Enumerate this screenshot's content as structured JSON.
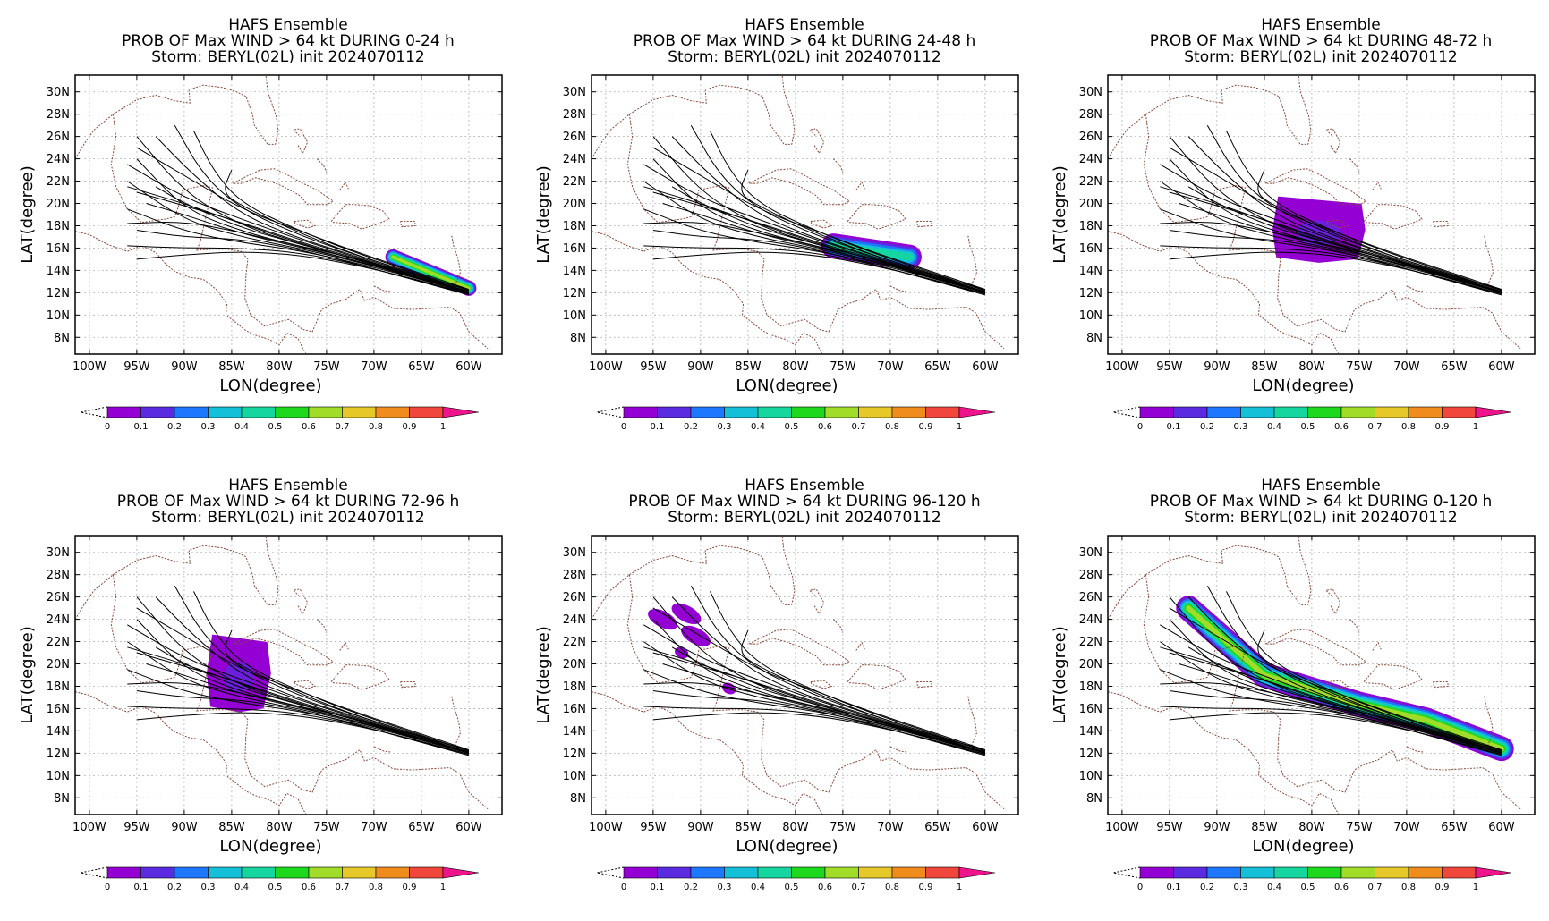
{
  "figure": {
    "model_title": "HAFS Ensemble",
    "storm_line": "Storm: BERYL(02L) init 2024070112",
    "xlabel": "LON(degree)",
    "ylabel": "LAT(degree)",
    "lon_ticks": [
      "100W",
      "95W",
      "90W",
      "85W",
      "80W",
      "75W",
      "70W",
      "65W",
      "60W"
    ],
    "lat_ticks": [
      "30N",
      "28N",
      "26N",
      "24N",
      "22N",
      "20N",
      "18N",
      "16N",
      "14N",
      "12N",
      "10N",
      "8N"
    ],
    "colorbar": {
      "labels": [
        "0",
        "0.1",
        "0.2",
        "0.3",
        "0.4",
        "0.5",
        "0.6",
        "0.7",
        "0.8",
        "0.9",
        "1"
      ],
      "colors": [
        "#9400d3",
        "#5a2be0",
        "#1e78ff",
        "#14c0d8",
        "#16d6a0",
        "#1ed81e",
        "#a0dc28",
        "#e6c828",
        "#f08c1e",
        "#f0463c",
        "#f0148c"
      ]
    },
    "colors": {
      "track": "#000000",
      "coast": "#8b4a3a",
      "grid": "#b4b4b4"
    }
  },
  "panels": [
    {
      "id": "p1",
      "prob_line": "PROB OF Max WIND > 64 kt DURING  0-24 h"
    },
    {
      "id": "p2",
      "prob_line": "PROB OF Max WIND > 64 kt DURING 24-48 h"
    },
    {
      "id": "p3",
      "prob_line": "PROB OF Max WIND > 64 kt DURING 48-72 h"
    },
    {
      "id": "p4",
      "prob_line": "PROB OF Max WIND > 64 kt DURING 72-96 h"
    },
    {
      "id": "p5",
      "prob_line": "PROB OF Max WIND > 64 kt DURING 96-120 h"
    },
    {
      "id": "p6",
      "prob_line": "PROB OF Max WIND > 64 kt DURING 0-120 h"
    }
  ],
  "chart_data": {
    "type": "heatmap",
    "map_extent": {
      "lon": [
        -101.5,
        -56.5
      ],
      "lat": [
        6.5,
        31.5
      ]
    },
    "ensemble_tracks": [
      [
        [
          -60,
          12
        ],
        [
          -66,
          13.6
        ],
        [
          -72,
          15
        ],
        [
          -78,
          16.4
        ],
        [
          -84,
          18
        ],
        [
          -90,
          21
        ],
        [
          -95,
          26
        ]
      ],
      [
        [
          -60,
          12
        ],
        [
          -66,
          13.8
        ],
        [
          -72,
          15.4
        ],
        [
          -78,
          17.2
        ],
        [
          -84,
          19.5
        ],
        [
          -88,
          22.5
        ],
        [
          -91,
          27
        ]
      ],
      [
        [
          -60,
          12.3
        ],
        [
          -66,
          13.7
        ],
        [
          -72,
          15.1
        ],
        [
          -78,
          16.2
        ],
        [
          -84,
          17.5
        ],
        [
          -90,
          19.5
        ],
        [
          -95,
          24
        ]
      ],
      [
        [
          -60,
          12.1
        ],
        [
          -66,
          13.5
        ],
        [
          -72,
          14.8
        ],
        [
          -78,
          16
        ],
        [
          -84,
          17
        ],
        [
          -90,
          18.5
        ],
        [
          -96,
          22
        ]
      ],
      [
        [
          -60,
          12
        ],
        [
          -66,
          13.4
        ],
        [
          -72,
          14.7
        ],
        [
          -78,
          15.8
        ],
        [
          -84,
          16.5
        ],
        [
          -90,
          17.5
        ],
        [
          -96,
          19.5
        ]
      ],
      [
        [
          -60,
          11.8
        ],
        [
          -66,
          13.2
        ],
        [
          -72,
          14.6
        ],
        [
          -78,
          15.6
        ],
        [
          -84,
          16
        ],
        [
          -90,
          16
        ],
        [
          -96,
          16.2
        ]
      ],
      [
        [
          -60,
          12.2
        ],
        [
          -66,
          13.9
        ],
        [
          -72,
          15.6
        ],
        [
          -78,
          17.6
        ],
        [
          -84,
          20
        ],
        [
          -87,
          23
        ],
        [
          -89,
          26.5
        ]
      ],
      [
        [
          -60,
          12
        ],
        [
          -66,
          13.6
        ],
        [
          -72,
          15.2
        ],
        [
          -78,
          16.8
        ],
        [
          -84,
          18.6
        ],
        [
          -90,
          20.5
        ],
        [
          -96,
          23.5
        ]
      ],
      [
        [
          -60,
          11.9
        ],
        [
          -66,
          13.3
        ],
        [
          -72,
          14.5
        ],
        [
          -78,
          15.4
        ],
        [
          -84,
          15.7
        ],
        [
          -90,
          15.4
        ],
        [
          -95,
          15
        ]
      ],
      [
        [
          -60,
          12.1
        ],
        [
          -66,
          13.7
        ],
        [
          -72,
          15.3
        ],
        [
          -78,
          16.9
        ],
        [
          -84,
          19
        ],
        [
          -89,
          22.5
        ],
        [
          -93,
          26
        ]
      ],
      [
        [
          -60,
          12
        ],
        [
          -66,
          13.5
        ],
        [
          -72,
          15
        ],
        [
          -78,
          16.5
        ],
        [
          -84,
          18.2
        ],
        [
          -90,
          20
        ],
        [
          -96,
          21.5
        ]
      ],
      [
        [
          -60,
          12.2
        ],
        [
          -66,
          13.8
        ],
        [
          -72,
          15.4
        ],
        [
          -78,
          17.4
        ],
        [
          -84,
          19.8
        ],
        [
          -86,
          21
        ],
        [
          -85,
          23
        ]
      ],
      [
        [
          -60,
          12
        ],
        [
          -66,
          13.4
        ],
        [
          -72,
          14.9
        ],
        [
          -78,
          16.2
        ],
        [
          -84,
          17.4
        ],
        [
          -90,
          18.4
        ],
        [
          -96,
          18.2
        ]
      ],
      [
        [
          -60,
          12.1
        ],
        [
          -66,
          13.6
        ],
        [
          -72,
          15.1
        ],
        [
          -78,
          16.6
        ],
        [
          -84,
          18.3
        ],
        [
          -90,
          19.8
        ],
        [
          -95,
          21
        ]
      ],
      [
        [
          -60,
          11.9
        ],
        [
          -66,
          13.2
        ],
        [
          -72,
          14.6
        ],
        [
          -78,
          15.9
        ],
        [
          -84,
          16.8
        ],
        [
          -90,
          17
        ],
        [
          -95,
          17.6
        ]
      ],
      [
        [
          -60,
          12.3
        ],
        [
          -66,
          14
        ],
        [
          -72,
          15.7
        ],
        [
          -78,
          17.6
        ],
        [
          -84,
          19.5
        ],
        [
          -90,
          22.5
        ],
        [
          -95,
          25
        ]
      ],
      [
        [
          -60,
          12
        ],
        [
          -66,
          13.5
        ],
        [
          -72,
          14.9
        ],
        [
          -78,
          16.1
        ],
        [
          -84,
          17.3
        ],
        [
          -90,
          19
        ],
        [
          -94,
          20
        ]
      ],
      [
        [
          -60,
          12.1
        ],
        [
          -66,
          13.6
        ],
        [
          -72,
          15
        ],
        [
          -78,
          16.4
        ],
        [
          -84,
          17.8
        ],
        [
          -90,
          20
        ],
        [
          -93,
          21.5
        ]
      ]
    ],
    "probability_regions": [
      {
        "panel": "p1",
        "core": [
          [
            -68,
            15.2
          ],
          [
            -60,
            12.4
          ]
        ],
        "band_width_deg": 1.6,
        "max_prob": 0.7
      },
      {
        "panel": "p2",
        "core": [
          [
            -76,
            16.2
          ],
          [
            -68,
            15.2
          ]
        ],
        "band_width_deg": 2.6,
        "max_prob": 0.45
      },
      {
        "panel": "p3",
        "core": [
          [
            -80,
            17.6
          ],
          [
            -78,
            17.4
          ]
        ],
        "band_width_deg": 3.5,
        "max_prob": 0.05,
        "blob": {
          "lon": [
            -84,
            -74.5
          ],
          "lat": [
            14.8,
            20.5
          ]
        }
      },
      {
        "panel": "p4",
        "blob": {
          "lon": [
            -87.5,
            -81
          ],
          "lat": [
            15.8,
            22.5
          ]
        },
        "max_prob": 0.05
      },
      {
        "panel": "p5",
        "patches": [
          [
            -94,
            24
          ],
          [
            -91.5,
            24.5
          ],
          [
            -90.5,
            22.5
          ],
          [
            -92,
            21
          ],
          [
            -87,
            17.8
          ]
        ],
        "max_prob": 0.05
      },
      {
        "panel": "p6",
        "core": [
          [
            -93,
            25
          ],
          [
            -85,
            19
          ],
          [
            -75,
            16.4
          ],
          [
            -68,
            15
          ],
          [
            -60,
            12.4
          ]
        ],
        "band_width_deg": 2.6,
        "max_prob": 0.7
      }
    ]
  }
}
